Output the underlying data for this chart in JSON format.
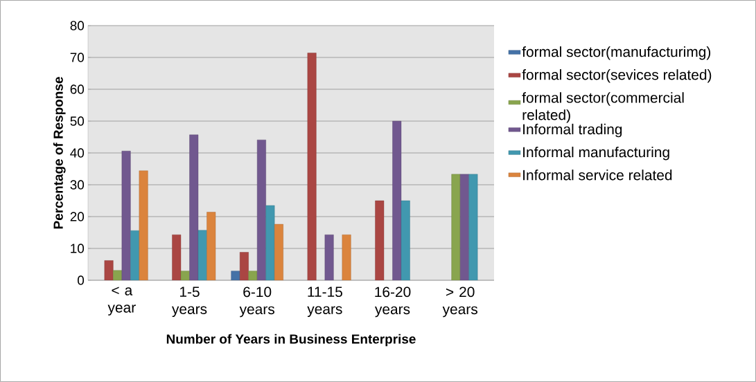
{
  "chart_data": {
    "type": "bar",
    "xlabel": "Number of Years in Business Enterprise",
    "ylabel": "Percentage of Response",
    "categories": [
      "< a year",
      "1-5 years",
      "6-10 years",
      "11-15 years",
      "16-20 years",
      "> 20 years"
    ],
    "series": [
      {
        "name": "formal sector(manufacturimg)",
        "color": "#4572a7",
        "values": [
          null,
          null,
          2.9,
          null,
          null,
          null
        ]
      },
      {
        "name": "formal sector(sevices related)",
        "color": "#aa4643",
        "values": [
          6.2,
          14.3,
          8.8,
          71.4,
          25,
          null
        ]
      },
      {
        "name": "formal sector(commercial related)",
        "color": "#89a54e",
        "values": [
          3.1,
          2.9,
          2.9,
          null,
          null,
          33.3
        ]
      },
      {
        "name": "Informal trading",
        "color": "#71588f",
        "values": [
          40.6,
          45.7,
          44.1,
          14.3,
          50,
          33.3
        ]
      },
      {
        "name": "Informal manufacturing",
        "color": "#4198af",
        "values": [
          15.6,
          15.7,
          23.5,
          null,
          25,
          33.3
        ]
      },
      {
        "name": "Informal  service related",
        "color": "#db843d",
        "values": [
          34.4,
          21.4,
          17.6,
          14.3,
          null,
          null
        ]
      }
    ],
    "ylim": [
      0,
      80
    ],
    "yticks": [
      0,
      10,
      20,
      30,
      40,
      50,
      60,
      70,
      80
    ],
    "grid": "y",
    "legend": "right"
  }
}
